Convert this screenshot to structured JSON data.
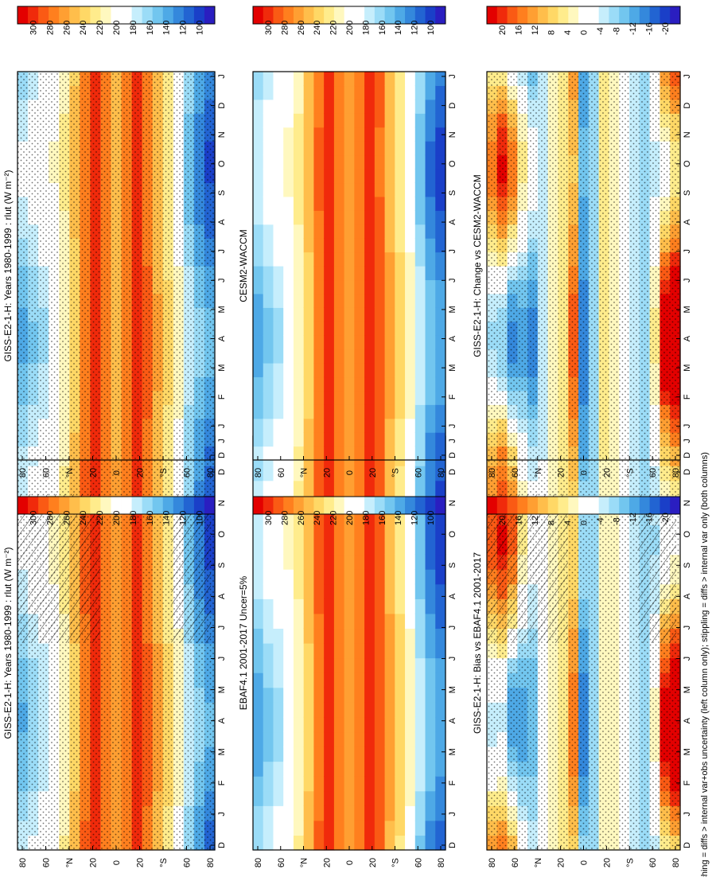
{
  "caption": "hatching = diffs > internal var+obs uncertainty (left column only); stippling = diffs > internal var only (both columns)",
  "months": [
    "J",
    "F",
    "M",
    "A",
    "M",
    "J",
    "J",
    "A",
    "S",
    "O",
    "N",
    "D"
  ],
  "month_axis": [
    "D",
    "J",
    "F",
    "M",
    "A",
    "M",
    "J",
    "J",
    "A",
    "S",
    "O",
    "N",
    "D",
    "J"
  ],
  "lat_ticks": [
    "80",
    "60",
    "°N",
    "20",
    "0",
    "20",
    "°S",
    "60",
    "80"
  ],
  "colorbars": {
    "abs_colors": [
      "#e30000",
      "#f02a0b",
      "#fa5a14",
      "#ff7f1e",
      "#ff9f32",
      "#ffbe4b",
      "#ffd866",
      "#ffec8c",
      "#fff8bf",
      "#ffffff",
      "#ffffff",
      "#c6eefc",
      "#9bdcf7",
      "#72c6ef",
      "#4ea9e6",
      "#3488dc",
      "#2264d2",
      "#1a3fc8",
      "#2a1ec0"
    ],
    "abs_labels": [
      "300",
      "280",
      "260",
      "240",
      "220",
      "200",
      "180",
      "160",
      "140",
      "120",
      "100"
    ],
    "diff_colors": [
      "#e30000",
      "#f02a0b",
      "#fa5a14",
      "#ff7f1e",
      "#ff9f32",
      "#ffbe4b",
      "#ffd866",
      "#ffec8c",
      "#fff8bf",
      "#ffffff",
      "#ffffff",
      "#c6eefc",
      "#9bdcf7",
      "#72c6ef",
      "#4ea9e6",
      "#3488dc",
      "#2264d2",
      "#1a3fc8",
      "#2a1ec0"
    ],
    "diff_labels": [
      "20",
      "16",
      "12",
      "8",
      "4",
      "0",
      "-4",
      "-8",
      "-12",
      "-16",
      "-20"
    ]
  },
  "chart_data": [
    {
      "type": "heatmap",
      "title": "GISS-E2-1-H: Years 1980-1999 : rlut (W m⁻²)",
      "xlabel": "",
      "ylabel": "",
      "x": [
        "D",
        "J",
        "F",
        "M",
        "A",
        "M",
        "J",
        "J",
        "A",
        "S",
        "O",
        "N",
        "D",
        "J"
      ],
      "y": [
        "80°N",
        "60°N",
        "20°N",
        "0",
        "20°S",
        "60°S",
        "80°S"
      ],
      "zlim": [
        100,
        300
      ],
      "hatching": true,
      "stippling": true,
      "profile_lat": [
        90,
        80,
        70,
        60,
        50,
        40,
        30,
        20,
        10,
        0,
        -10,
        -20,
        -30,
        -40,
        -50,
        -60,
        -70,
        -80,
        -90
      ],
      "profile_z": [
        170,
        180,
        188,
        198,
        214,
        238,
        268,
        285,
        262,
        248,
        262,
        280,
        268,
        246,
        225,
        205,
        172,
        150,
        136
      ],
      "seasonal_amp": [
        -18,
        -16,
        -14,
        -10,
        -6,
        -4,
        -2,
        0,
        0,
        0,
        0,
        0,
        2,
        4,
        6,
        8,
        12,
        16,
        18
      ]
    },
    {
      "type": "heatmap",
      "title": "GISS-E2-1-H: Years 1980-1999 : rlut (W m⁻²)",
      "xlabel": "",
      "ylabel": "",
      "x": [
        "D",
        "J",
        "F",
        "M",
        "A",
        "M",
        "J",
        "J",
        "A",
        "S",
        "O",
        "N",
        "D",
        "J"
      ],
      "y": [
        "80°N",
        "60°N",
        "20°N",
        "0",
        "20°S",
        "60°S",
        "80°S"
      ],
      "zlim": [
        100,
        300
      ],
      "hatching": false,
      "stippling": true,
      "profile_lat": [
        90,
        80,
        70,
        60,
        50,
        40,
        30,
        20,
        10,
        0,
        -10,
        -20,
        -30,
        -40,
        -50,
        -60,
        -70,
        -80,
        -90
      ],
      "profile_z": [
        168,
        178,
        186,
        196,
        212,
        236,
        266,
        284,
        262,
        246,
        262,
        282,
        268,
        245,
        224,
        204,
        170,
        150,
        138
      ],
      "seasonal_amp": [
        -18,
        -16,
        -14,
        -10,
        -6,
        -4,
        -2,
        0,
        0,
        0,
        0,
        0,
        2,
        4,
        6,
        8,
        12,
        16,
        18
      ]
    },
    {
      "type": "heatmap",
      "title": "EBAF4.1 2001-2017 Uncer=5%",
      "xlabel": "",
      "ylabel": "",
      "x": [
        "D",
        "J",
        "F",
        "M",
        "A",
        "M",
        "J",
        "J",
        "A",
        "S",
        "O",
        "N",
        "D",
        "J"
      ],
      "y": [
        "80°N",
        "60°N",
        "20°N",
        "0",
        "20°S",
        "60°S",
        "80°S"
      ],
      "zlim": [
        100,
        300
      ],
      "hatching": false,
      "stippling": false,
      "profile_lat": [
        90,
        80,
        70,
        60,
        50,
        40,
        30,
        20,
        10,
        0,
        -10,
        -20,
        -30,
        -40,
        -50,
        -60,
        -70,
        -80,
        -90
      ],
      "profile_z": [
        165,
        176,
        185,
        197,
        213,
        238,
        268,
        288,
        266,
        250,
        266,
        286,
        272,
        248,
        228,
        205,
        168,
        145,
        132
      ],
      "seasonal_amp": [
        -18,
        -16,
        -14,
        -10,
        -6,
        -4,
        -2,
        0,
        0,
        0,
        0,
        0,
        2,
        4,
        6,
        8,
        12,
        16,
        18
      ]
    },
    {
      "type": "heatmap",
      "title": "CESM2-WACCM",
      "xlabel": "",
      "ylabel": "",
      "x": [
        "D",
        "J",
        "F",
        "M",
        "A",
        "M",
        "J",
        "J",
        "A",
        "S",
        "O",
        "N",
        "D",
        "J"
      ],
      "y": [
        "80°N",
        "60°N",
        "20°N",
        "0",
        "20°S",
        "60°S",
        "80°S"
      ],
      "zlim": [
        100,
        300
      ],
      "hatching": false,
      "stippling": false,
      "profile_lat": [
        90,
        80,
        70,
        60,
        50,
        40,
        30,
        20,
        10,
        0,
        -10,
        -20,
        -30,
        -40,
        -50,
        -60,
        -70,
        -80,
        -90
      ],
      "profile_z": [
        166,
        177,
        186,
        197,
        213,
        237,
        267,
        286,
        264,
        249,
        264,
        284,
        270,
        247,
        226,
        205,
        170,
        146,
        134
      ],
      "seasonal_amp": [
        -18,
        -16,
        -14,
        -10,
        -6,
        -4,
        -2,
        0,
        0,
        0,
        0,
        0,
        2,
        4,
        6,
        8,
        12,
        16,
        18
      ]
    },
    {
      "type": "heatmap",
      "title": "GISS-E2-1-H: Bias vs EBAF4.1 2001-2017",
      "xlabel": "",
      "ylabel": "",
      "x": [
        "D",
        "J",
        "F",
        "M",
        "A",
        "M",
        "J",
        "J",
        "A",
        "S",
        "O",
        "N",
        "D",
        "J"
      ],
      "y": [
        "80°N",
        "60°N",
        "20°N",
        "0",
        "20°S",
        "60°S",
        "80°S"
      ],
      "zlim": [
        -22,
        22
      ],
      "hatching": true,
      "stippling": true,
      "profile_lat": [
        90,
        80,
        70,
        60,
        50,
        40,
        30,
        20,
        10,
        0,
        -10,
        -20,
        -30,
        -40,
        -50,
        -60,
        -70,
        -80,
        -90
      ],
      "profile_z": [
        6,
        8,
        2,
        -4,
        -6,
        -2,
        2,
        4,
        10,
        -10,
        -6,
        3,
        2,
        -2,
        -4,
        -6,
        -2,
        10,
        14
      ],
      "seasonal_amp": [
        -10,
        -12,
        -14,
        -8,
        -4,
        0,
        0,
        0,
        4,
        -4,
        0,
        0,
        0,
        0,
        0,
        0,
        4,
        12,
        14
      ]
    },
    {
      "type": "heatmap",
      "title": "GISS-E2-1-H: Change vs CESM2-WACCM",
      "xlabel": "",
      "ylabel": "",
      "x": [
        "D",
        "J",
        "F",
        "M",
        "A",
        "M",
        "J",
        "J",
        "A",
        "S",
        "O",
        "N",
        "D",
        "J"
      ],
      "y": [
        "80°N",
        "60°N",
        "20°N",
        "0",
        "20°S",
        "60°S",
        "80°S"
      ],
      "zlim": [
        -22,
        22
      ],
      "hatching": false,
      "stippling": true,
      "profile_lat": [
        90,
        80,
        70,
        60,
        50,
        40,
        30,
        20,
        10,
        0,
        -10,
        -20,
        -30,
        -40,
        -50,
        -60,
        -70,
        -80,
        -90
      ],
      "profile_z": [
        4,
        6,
        0,
        -4,
        -8,
        -4,
        2,
        4,
        12,
        -12,
        -6,
        4,
        2,
        -2,
        -4,
        -6,
        0,
        12,
        16
      ],
      "seasonal_amp": [
        -10,
        -14,
        -14,
        -8,
        -6,
        0,
        0,
        0,
        4,
        -2,
        0,
        0,
        0,
        0,
        0,
        0,
        4,
        12,
        12
      ]
    }
  ]
}
